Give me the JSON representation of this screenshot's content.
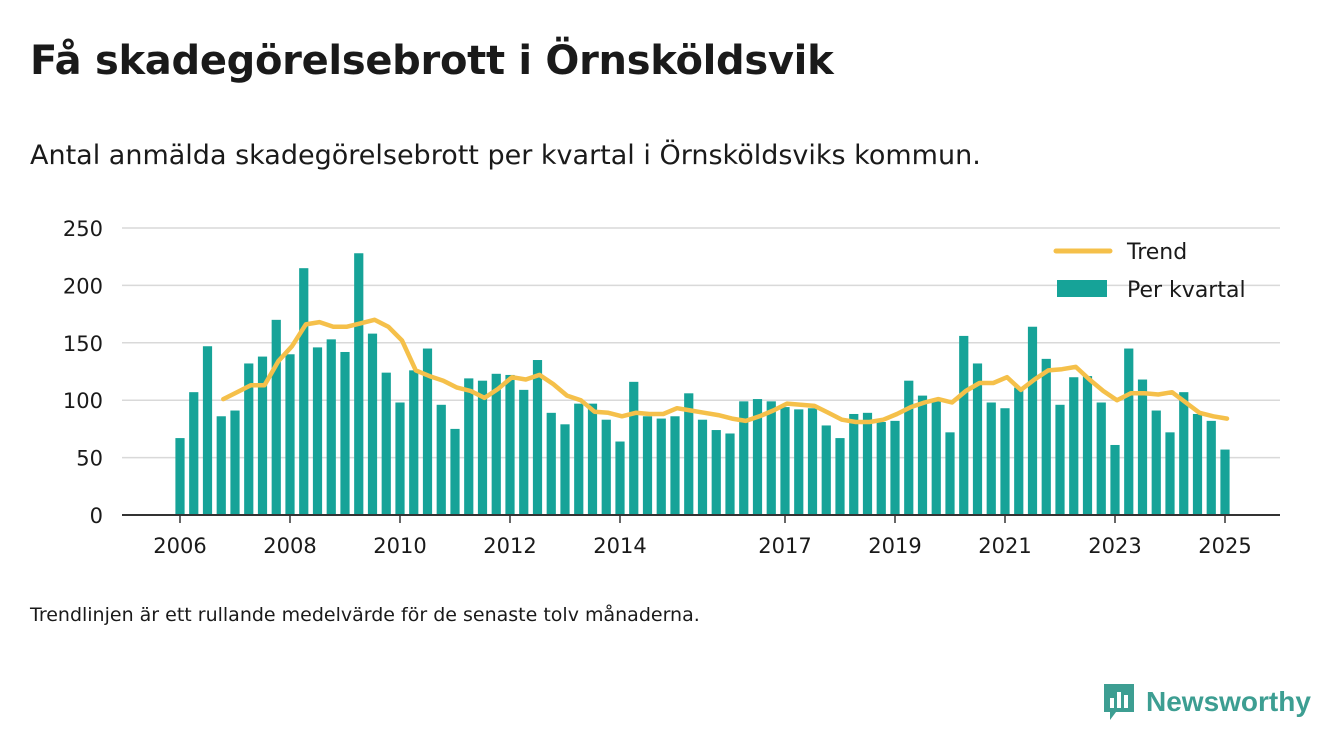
{
  "title": "Få skadegörelsebrott i Örnsköldsvik",
  "subtitle": "Antal anmälda skadegörelsebrott per kvartal i Örnsköldsviks kommun.",
  "footnote": "Trendlinjen är ett rullande medelvärde för de senaste tolv månaderna.",
  "brand": {
    "name": "Newsworthy",
    "icon": "newsworthy-logo-icon"
  },
  "colors": {
    "bars": "#16a398",
    "trend": "#f5c04a",
    "grid": "#d9d9d9",
    "axis": "#333333",
    "brand": "#3d9e92"
  },
  "chart_data": {
    "type": "bar",
    "xlabel": "",
    "ylabel": "",
    "ylim": [
      0,
      250
    ],
    "yticks": [
      0,
      50,
      100,
      150,
      200,
      250
    ],
    "xticks": [
      "2006",
      "2008",
      "2010",
      "2012",
      "2014",
      "2017",
      "2019",
      "2021",
      "2023",
      "2025"
    ],
    "grid": true,
    "legend_position": "top-right",
    "categories": [
      "2006 Q1",
      "2006 Q2",
      "2006 Q3",
      "2006 Q4",
      "2007 Q1",
      "2007 Q2",
      "2007 Q3",
      "2007 Q4",
      "2008 Q1",
      "2008 Q2",
      "2008 Q3",
      "2008 Q4",
      "2009 Q1",
      "2009 Q2",
      "2009 Q3",
      "2009 Q4",
      "2010 Q1",
      "2010 Q2",
      "2010 Q3",
      "2010 Q4",
      "2011 Q1",
      "2011 Q2",
      "2011 Q3",
      "2011 Q4",
      "2012 Q1",
      "2012 Q2",
      "2012 Q3",
      "2012 Q4",
      "2013 Q1",
      "2013 Q2",
      "2013 Q3",
      "2013 Q4",
      "2014 Q1",
      "2014 Q2",
      "2014 Q3",
      "2014 Q4",
      "2015 Q1",
      "2015 Q2",
      "2015 Q3",
      "2015 Q4",
      "2016 Q1",
      "2016 Q2",
      "2016 Q3",
      "2016 Q4",
      "2017 Q1",
      "2017 Q2",
      "2017 Q3",
      "2017 Q4",
      "2018 Q1",
      "2018 Q2",
      "2018 Q3",
      "2018 Q4",
      "2019 Q1",
      "2019 Q2",
      "2019 Q3",
      "2019 Q4",
      "2020 Q1",
      "2020 Q2",
      "2020 Q3",
      "2020 Q4",
      "2021 Q1",
      "2021 Q2",
      "2021 Q3",
      "2021 Q4",
      "2022 Q1",
      "2022 Q2",
      "2022 Q3",
      "2022 Q4",
      "2023 Q1",
      "2023 Q2",
      "2023 Q3",
      "2023 Q4",
      "2024 Q1",
      "2024 Q2",
      "2024 Q3",
      "2024 Q4",
      "2025 Q1"
    ],
    "series": [
      {
        "name": "Per kvartal",
        "type": "bar",
        "values": [
          67,
          107,
          147,
          86,
          91,
          132,
          138,
          170,
          140,
          215,
          146,
          153,
          142,
          228,
          158,
          124,
          98,
          126,
          145,
          96,
          75,
          119,
          117,
          123,
          122,
          109,
          135,
          89,
          79,
          97,
          97,
          83,
          64,
          116,
          86,
          84,
          86,
          106,
          83,
          74,
          71,
          99,
          101,
          99,
          94,
          92,
          93,
          78,
          67,
          88,
          89,
          81,
          82,
          117,
          104,
          101,
          72,
          156,
          132,
          98,
          93,
          111,
          164,
          136,
          96,
          120,
          121,
          98,
          61,
          145,
          118,
          91,
          72,
          107,
          88,
          82,
          57
        ]
      },
      {
        "name": "Trend",
        "type": "line",
        "values": [
          null,
          null,
          null,
          101,
          107,
          113,
          113,
          134,
          147,
          166,
          168,
          164,
          164,
          167,
          170,
          164,
          152,
          126,
          121,
          117,
          111,
          108,
          102,
          110,
          120,
          118,
          122,
          114,
          104,
          100,
          90,
          89,
          86,
          89,
          88,
          88,
          93,
          91,
          89,
          87,
          84,
          82,
          86,
          91,
          97,
          96,
          95,
          89,
          83,
          81,
          81,
          83,
          88,
          94,
          98,
          101,
          98,
          108,
          115,
          115,
          120,
          109,
          118,
          126,
          127,
          129,
          118,
          108,
          100,
          106,
          106,
          105,
          107,
          98,
          89,
          86,
          84
        ]
      }
    ]
  }
}
